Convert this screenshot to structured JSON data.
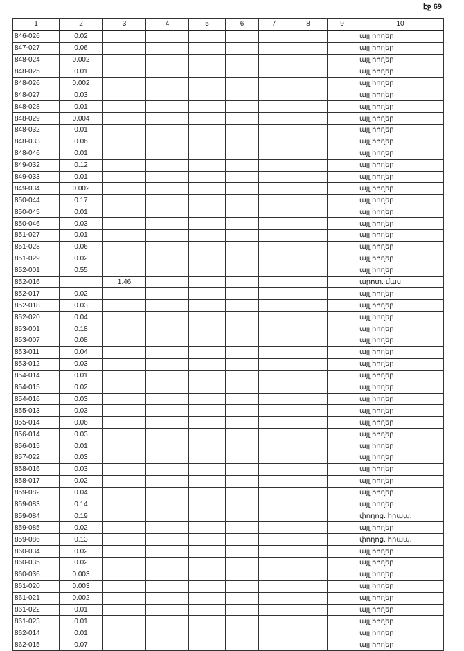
{
  "page_label": "էջ 69",
  "headers": [
    "1",
    "2",
    "3",
    "4",
    "5",
    "6",
    "7",
    "8",
    "9",
    "10"
  ],
  "rows": [
    [
      "846-026",
      "0.02",
      "",
      "այլ հողեր"
    ],
    [
      "847-027",
      "0.06",
      "",
      "այլ հողեր"
    ],
    [
      "848-024",
      "0.002",
      "",
      "այլ հողեր"
    ],
    [
      "848-025",
      "0.01",
      "",
      "այլ հողեր"
    ],
    [
      "848-026",
      "0.002",
      "",
      "այլ հողեր"
    ],
    [
      "848-027",
      "0.03",
      "",
      "այլ հողեր"
    ],
    [
      "848-028",
      "0.01",
      "",
      "այլ հողեր"
    ],
    [
      "848-029",
      "0.004",
      "",
      "այլ հողեր"
    ],
    [
      "848-032",
      "0.01",
      "",
      "այլ հողեր"
    ],
    [
      "848-033",
      "0.06",
      "",
      "այլ հողեր"
    ],
    [
      "848-046",
      "0.01",
      "",
      "այլ հողեր"
    ],
    [
      "849-032",
      "0.12",
      "",
      "այլ հողեր"
    ],
    [
      "849-033",
      "0.01",
      "",
      "այլ հողեր"
    ],
    [
      "849-034",
      "0.002",
      "",
      "այլ հողեր"
    ],
    [
      "850-044",
      "0.17",
      "",
      "այլ հողեր"
    ],
    [
      "850-045",
      "0.01",
      "",
      "այլ հողեր"
    ],
    [
      "850-046",
      "0.03",
      "",
      "այլ հողեր"
    ],
    [
      "851-027",
      "0.01",
      "",
      "այլ հողեր"
    ],
    [
      "851-028",
      "0.06",
      "",
      "այլ հողեր"
    ],
    [
      "851-029",
      "0.02",
      "",
      "այլ հողեր"
    ],
    [
      "852-001",
      "0.55",
      "",
      "այլ հողեր"
    ],
    [
      "852-016",
      "",
      "1.46",
      "արոտ. մաս"
    ],
    [
      "852-017",
      "0.02",
      "",
      "այլ հողեր"
    ],
    [
      "852-018",
      "0.03",
      "",
      "այլ հողեր"
    ],
    [
      "852-020",
      "0.04",
      "",
      "այլ հողեր"
    ],
    [
      "853-001",
      "0.18",
      "",
      "այլ հողեր"
    ],
    [
      "853-007",
      "0.08",
      "",
      "այլ հողեր"
    ],
    [
      "853-011",
      "0.04",
      "",
      "այլ հողեր"
    ],
    [
      "853-012",
      "0.03",
      "",
      "այլ հողեր"
    ],
    [
      "854-014",
      "0.01",
      "",
      "այլ հողեր"
    ],
    [
      "854-015",
      "0.02",
      "",
      "այլ հողեր"
    ],
    [
      "854-016",
      "0.03",
      "",
      "այլ հողեր"
    ],
    [
      "855-013",
      "0.03",
      "",
      "այլ հողեր"
    ],
    [
      "855-014",
      "0.06",
      "",
      "այլ հողեր"
    ],
    [
      "856-014",
      "0.03",
      "",
      "այլ հողեր"
    ],
    [
      "856-015",
      "0.01",
      "",
      "այլ հողեր"
    ],
    [
      "857-022",
      "0.03",
      "",
      "այլ հողեր"
    ],
    [
      "858-016",
      "0.03",
      "",
      "այլ հողեր"
    ],
    [
      "858-017",
      "0.02",
      "",
      "այլ հողեր"
    ],
    [
      "859-082",
      "0.04",
      "",
      "այլ հողեր"
    ],
    [
      "859-083",
      "0.14",
      "",
      "այլ հողեր"
    ],
    [
      "859-084",
      "0.19",
      "",
      "փողոց. հրապ."
    ],
    [
      "859-085",
      "0.02",
      "",
      "այլ հողեր"
    ],
    [
      "859-086",
      "0.13",
      "",
      "փողոց. հրապ."
    ],
    [
      "860-034",
      "0.02",
      "",
      "այլ հողեր"
    ],
    [
      "860-035",
      "0.02",
      "",
      "այլ հողեր"
    ],
    [
      "860-036",
      "0.003",
      "",
      "այլ հողեր"
    ],
    [
      "861-020",
      "0.003",
      "",
      "այլ հողեր"
    ],
    [
      "861-021",
      "0.002",
      "",
      "այլ հողեր"
    ],
    [
      "861-022",
      "0.01",
      "",
      "այլ հողեր"
    ],
    [
      "861-023",
      "0.01",
      "",
      "այլ հողեր"
    ],
    [
      "862-014",
      "0.01",
      "",
      "այլ հողեր"
    ],
    [
      "862-015",
      "0.07",
      "",
      "այլ հողեր"
    ]
  ]
}
